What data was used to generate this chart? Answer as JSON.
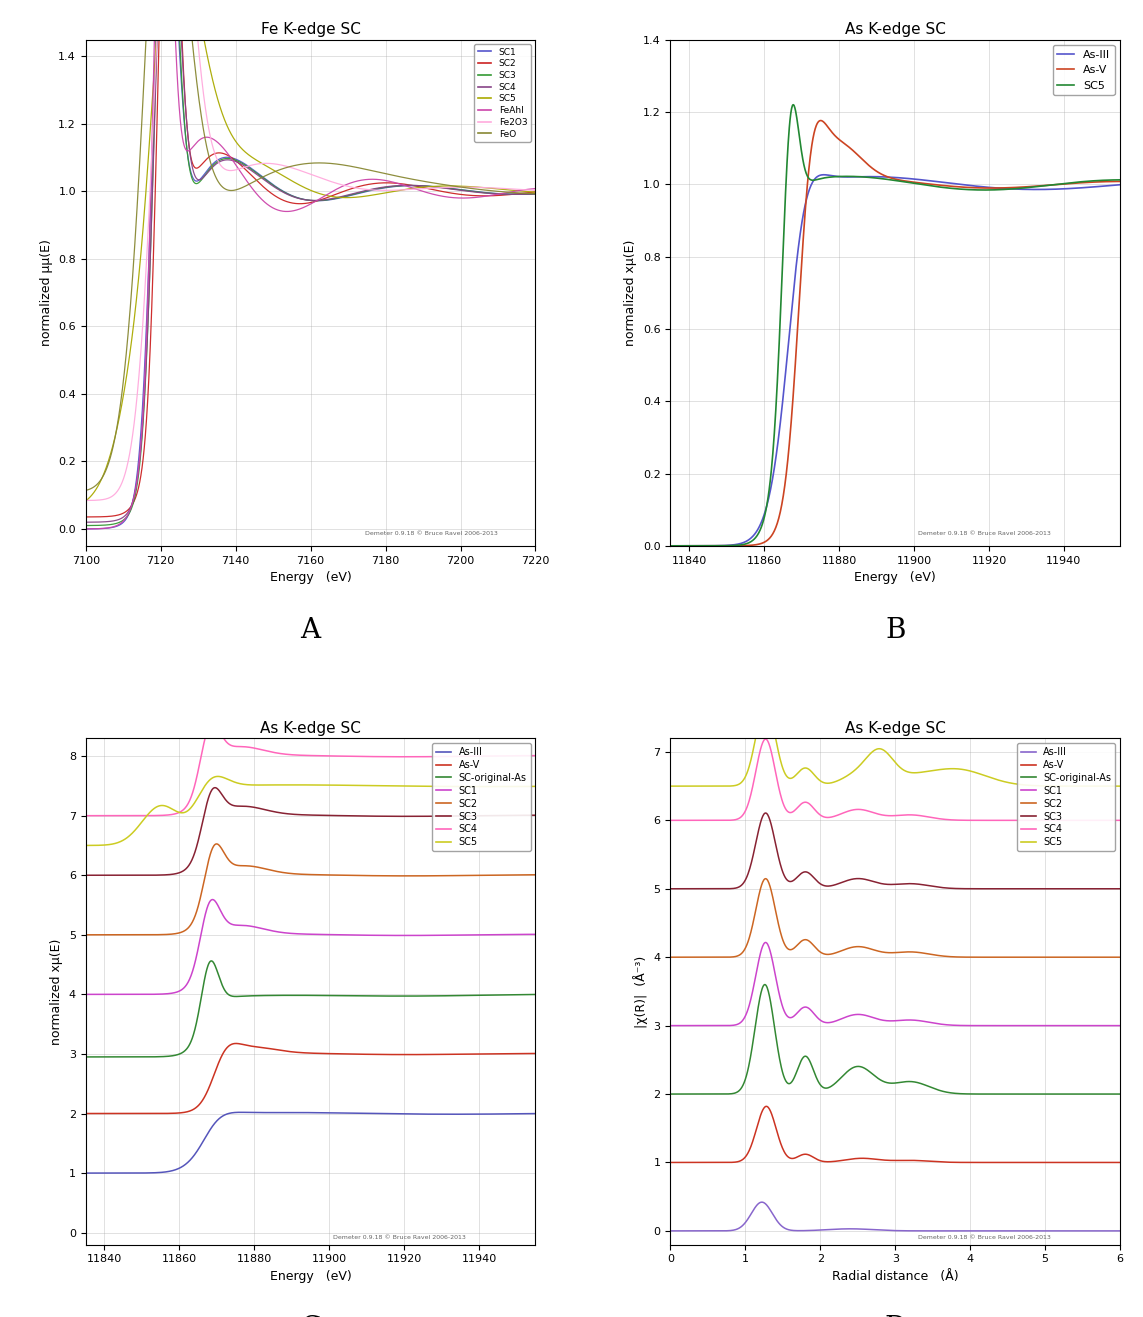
{
  "panel_A": {
    "title": "Fe K-edge SC",
    "xlabel": "Energy   (eV)",
    "ylabel": "normalized μμ(E)",
    "xlim": [
      7100,
      7220
    ],
    "ylim": [
      -0.05,
      1.45
    ],
    "yticks": [
      0,
      0.2,
      0.4,
      0.6,
      0.8,
      1.0,
      1.2,
      1.4
    ],
    "xticks": [
      7100,
      7120,
      7140,
      7160,
      7180,
      7200,
      7220
    ],
    "legend": [
      "SC1",
      "SC2",
      "SC3",
      "SC4",
      "SC5",
      "FeAhl",
      "Fe2O3",
      "FeO"
    ],
    "colors": [
      "#5555cc",
      "#cc2222",
      "#339933",
      "#884488",
      "#aaaa00",
      "#cc44aa",
      "#ffaadd",
      "#888833"
    ],
    "credit": "Demeter 0.9.18 © Bruce Ravel 2006-2013"
  },
  "panel_B": {
    "title": "As K-edge SC",
    "xlabel": "Energy   (eV)",
    "ylabel": "normalized xμ(E)",
    "xlim": [
      11835,
      11955
    ],
    "ylim": [
      0,
      1.4
    ],
    "yticks": [
      0,
      0.2,
      0.4,
      0.6,
      0.8,
      1.0,
      1.2,
      1.4
    ],
    "xticks": [
      11840,
      11860,
      11880,
      11900,
      11920,
      11940
    ],
    "legend": [
      "As-III",
      "As-V",
      "SC5"
    ],
    "colors": [
      "#5555cc",
      "#cc4422",
      "#228833"
    ],
    "credit": "Demeter 0.9.18 © Bruce Ravel 2006-2013"
  },
  "panel_C": {
    "title": "As K-edge SC",
    "xlabel": "Energy   (eV)",
    "ylabel": "normalized xμ(E)",
    "xlim": [
      11835,
      11955
    ],
    "ylim": [
      -0.2,
      8.3
    ],
    "yticks": [
      0,
      1,
      2,
      3,
      4,
      5,
      6,
      7,
      8
    ],
    "xticks": [
      11840,
      11860,
      11880,
      11900,
      11920,
      11940
    ],
    "legend": [
      "As-III",
      "As-V",
      "SC-original-As",
      "SC1",
      "SC2",
      "SC3",
      "SC4",
      "SC5"
    ],
    "colors": [
      "#5555bb",
      "#cc3322",
      "#338833",
      "#cc44cc",
      "#cc6622",
      "#882233",
      "#ff66bb",
      "#cccc22"
    ],
    "offsets": [
      1,
      2,
      3,
      4,
      5,
      6,
      7,
      7.5
    ],
    "credit": "Demeter 0.9.18 © Bruce Ravel 2006-2013"
  },
  "panel_D": {
    "title": "As K-edge SC",
    "xlabel": "Radial distance   (Å)",
    "ylabel": "|χ(R)|  (Å⁻³)",
    "xlim": [
      0,
      6
    ],
    "ylim": [
      -0.2,
      7.2
    ],
    "yticks": [
      0,
      1,
      2,
      3,
      4,
      5,
      6,
      7
    ],
    "xticks": [
      0,
      1,
      2,
      3,
      4,
      5,
      6
    ],
    "legend": [
      "As-III",
      "As-V",
      "SC-original-As",
      "SC1",
      "SC2",
      "SC3",
      "SC4",
      "SC5"
    ],
    "colors": [
      "#8866cc",
      "#cc3322",
      "#338833",
      "#cc44cc",
      "#cc6622",
      "#882233",
      "#ff66bb",
      "#cccc22"
    ],
    "offsets": [
      0,
      1,
      2,
      3,
      4,
      5,
      6,
      6.5
    ],
    "credit": "Demeter 0.9.18 © Bruce Ravel 2006-2013"
  },
  "panel_labels": [
    "A",
    "B",
    "C",
    "D"
  ],
  "background_color": "#ffffff",
  "grid_color": "#aaaaaa",
  "grid_alpha": 0.5
}
